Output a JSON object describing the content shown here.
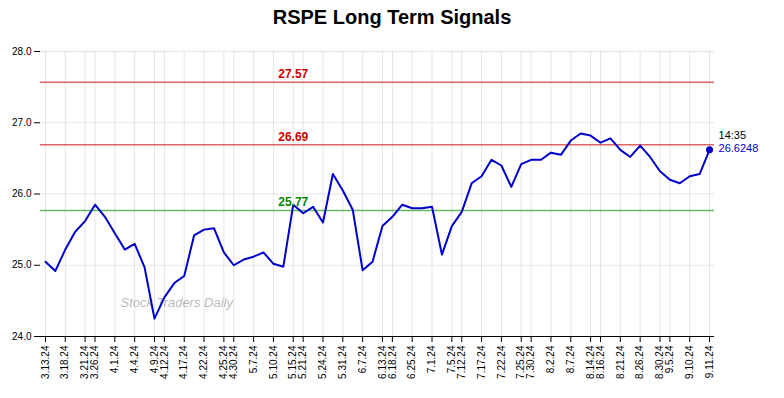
{
  "chart_data": {
    "type": "line",
    "title": "RSPE Long Term Signals",
    "color": "#0000cc",
    "categories": [
      "3.13.24",
      null,
      "3.18.24",
      null,
      "3.21.24",
      "3.26.24",
      null,
      "4.1.24",
      null,
      "4.4.24",
      null,
      "4.9.24",
      "4.12.24",
      null,
      "4.17.24",
      null,
      "4.22.24",
      null,
      "4.25.24",
      "4.30.24",
      null,
      "5.7.24",
      null,
      "5.10.24",
      null,
      "5.15.24",
      "5.21.24",
      null,
      "5.24.24",
      null,
      "5.31.24",
      null,
      "6.7.24",
      null,
      "6.13.24",
      "6.18.24",
      null,
      "6.25.24",
      null,
      "7.1.24",
      null,
      "7.5.24",
      "7.12.24",
      null,
      "7.17.24",
      null,
      "7.22.24",
      null,
      "7.25.24",
      "7.30.24",
      null,
      "8.2.24",
      null,
      "8.7.24",
      null,
      "8.14.24",
      "8.16.24",
      null,
      "8.21.24",
      null,
      "8.26.24",
      null,
      "8.30.24",
      "9.5.24",
      null,
      "9.10.24",
      null,
      "9.11.24"
    ],
    "values": [
      25.05,
      24.92,
      25.22,
      25.47,
      25.62,
      25.85,
      25.68,
      25.45,
      25.22,
      25.3,
      24.97,
      24.25,
      24.55,
      24.75,
      24.85,
      25.42,
      25.5,
      25.52,
      25.18,
      25.0,
      25.08,
      25.12,
      25.18,
      25.02,
      24.98,
      25.85,
      25.73,
      25.82,
      25.6,
      26.28,
      26.05,
      25.78,
      24.93,
      25.05,
      25.55,
      25.68,
      25.85,
      25.8,
      25.8,
      25.82,
      25.15,
      25.55,
      25.75,
      26.15,
      26.25,
      26.48,
      26.4,
      26.1,
      26.42,
      26.48,
      26.48,
      26.58,
      26.55,
      26.75,
      26.85,
      26.82,
      26.72,
      26.78,
      26.62,
      26.52,
      26.68,
      26.52,
      26.32,
      26.2,
      26.15,
      26.25,
      26.28,
      26.62
    ],
    "ylim": [
      24,
      28
    ],
    "yticks": [
      24,
      25,
      26,
      27,
      28
    ],
    "grid": true,
    "reference_lines": [
      {
        "value": 27.57,
        "label": "27.57",
        "color": "#cc0000"
      },
      {
        "value": 26.69,
        "label": "26.69",
        "color": "#cc0000"
      },
      {
        "value": 25.77,
        "label": "25.77",
        "color": "#008800"
      }
    ],
    "annotations": [
      {
        "text": "14:35"
      },
      {
        "text": "26.6248",
        "color": "#0000cc"
      }
    ],
    "watermark": "Stock Traders Daily"
  }
}
